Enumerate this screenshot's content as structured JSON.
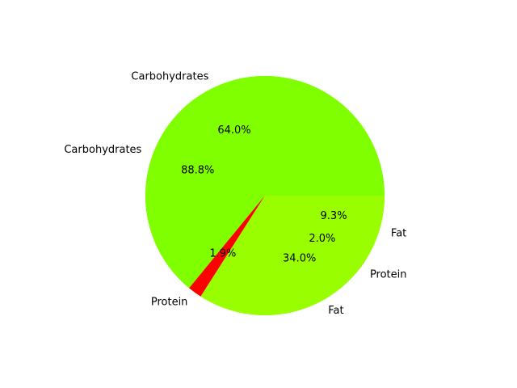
{
  "chart_data": [
    {
      "type": "pie",
      "title": "",
      "start_angle_deg": 0,
      "direction": "counterclockwise",
      "slices": [
        {
          "label": "Carbohydrates",
          "value": 64.0,
          "pct_label": "64.0%",
          "color": "#80ff00"
        },
        {
          "label": "Protein",
          "value": 1.9,
          "pct_label": "1.9%",
          "color": "#ff0000"
        },
        {
          "label": "Fat",
          "value": 34.0,
          "pct_label": "34.0%",
          "color": "#99ff00"
        }
      ]
    },
    {
      "type": "pie",
      "title": "",
      "start_angle_deg": 0,
      "direction": "counterclockwise",
      "slices": [
        {
          "label": "Carbohydrates",
          "value": 88.8,
          "pct_label": "88.8%",
          "color": "#80ff00"
        },
        {
          "label": "Protein",
          "value": 2.0,
          "pct_label": "2.0%",
          "color": "#ff0000"
        },
        {
          "label": "Fat",
          "value": 9.3,
          "pct_label": "9.3%",
          "color": "#99ff00"
        }
      ]
    }
  ]
}
